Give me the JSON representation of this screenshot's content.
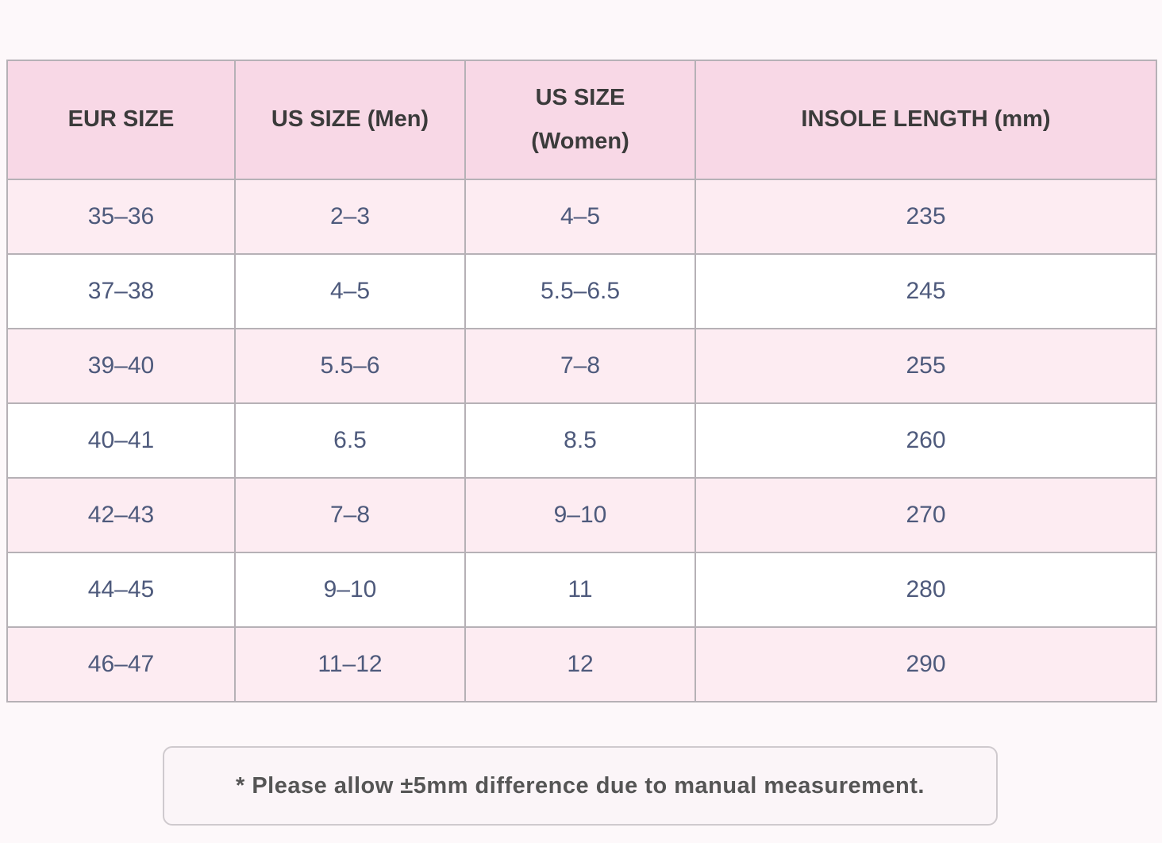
{
  "table": {
    "headers": [
      "EUR SIZE",
      "US SIZE (Men)",
      "US SIZE (Women)",
      "INSOLE LENGTH (mm)"
    ],
    "rows": [
      [
        "35–36",
        "2–3",
        "4–5",
        "235"
      ],
      [
        "37–38",
        "4–5",
        "5.5–6.5",
        "245"
      ],
      [
        "39–40",
        "5.5–6",
        "7–8",
        "255"
      ],
      [
        "40–41",
        "6.5",
        "8.5",
        "260"
      ],
      [
        "42–43",
        "7–8",
        "9–10",
        "270"
      ],
      [
        "44–45",
        "9–10",
        "11",
        "280"
      ],
      [
        "46–47",
        "11–12",
        "12",
        "290"
      ]
    ]
  },
  "note": "* Please allow ±5mm difference due to manual measurement.",
  "colors": {
    "page_background": "#fdf8fa",
    "header_background": "#f8d8e6",
    "odd_row_background": "#fdecf2",
    "even_row_background": "#ffffff",
    "table_border": "#b6b1b6",
    "header_text": "#3b3b3b",
    "data_text": "#4e5a7c",
    "note_text": "#555555",
    "note_border": "#cfcace"
  }
}
